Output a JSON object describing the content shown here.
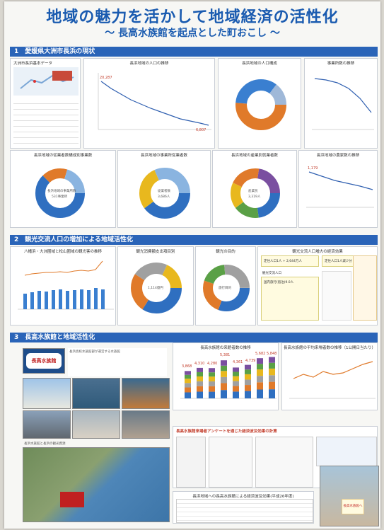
{
  "title": "地域の魅力を活かして地域経済の活性化",
  "subtitle": "～ 長高水族館を起点とした町おこし ～",
  "colors": {
    "accent": "#2a64b8",
    "title": "#1a5bb0",
    "orange": "#e07a2a",
    "blue": "#2f6fc0",
    "green": "#5aa046",
    "yellow": "#e8b81e"
  },
  "sections": [
    {
      "num": "1",
      "label": "愛媛県大洲市長浜の現状"
    },
    {
      "num": "2",
      "label": "観光交流人口の増加による地域活性化"
    },
    {
      "num": "3",
      "label": "長高水族館と地域活性化"
    }
  ],
  "s1": {
    "basic_title": "大洲市長浜基本データ",
    "pop_trend": {
      "title": "長浜地域の人口の推移",
      "first_value": "20,287",
      "last_value": "6,807"
    },
    "pop_composition": {
      "title": "長浜地域の人口構成"
    },
    "establishments": {
      "title": "事業所数の推移"
    },
    "workers_by_industry": {
      "title": "長浜地域の従業者数構成別事業数",
      "center_label": "長浜地域の事業所数",
      "center_value": "531事業所"
    },
    "workers_total": {
      "title": "長浜地域の事業所従業者数",
      "center_label": "従業者数",
      "center_value": "3,686人"
    },
    "industry_detail": {
      "title": "長浜地域の産業別就業者数",
      "center_label": "産業別",
      "center_value": "3,319人"
    },
    "farmers": {
      "title": "長浜地域の農家数の推移",
      "first_value": "1,179"
    }
  },
  "s2": {
    "visitors_trend": {
      "title": "八幡浜・大洲圏域と松山圏域の観光客の推移"
    },
    "spending": {
      "title": "観光消費額支出項目別",
      "center": "1,114億円"
    },
    "purpose": {
      "title": "観光の目的",
      "center": "旅行目的"
    },
    "summary_title": "観光交流人口増大の経済効果",
    "summary_pop": "定住人口1人 ÷ 2,644万人",
    "summary_flow": "定住人口1人減少分",
    "effect_label_1": "観光交流人口",
    "effect_label_2": "国内旅行(宿泊)9.0人"
  },
  "s3": {
    "logo_text": "長高水族館",
    "intro_text": "長浜高校水族館部が運営する水族館",
    "chart1_title": "長高水族館の来館者数の推移",
    "chart1_values": [
      "3,868",
      "4,310",
      "4,280",
      "5,381",
      "4,361",
      "4,739",
      "5,682",
      "5,848"
    ],
    "chart2_title": "長高水族館の平均来場者数の推移（1公開日当たり）",
    "survey_title": "長高水族館来場者アンケートを通じた経済波及効果の計算",
    "econ_table_title": "長浜地域への長高水族館による経済波及効果(平成26年度)",
    "map_label": "長浜水族館と長浜の観光資源",
    "sign_text": "長高水族館へ"
  }
}
